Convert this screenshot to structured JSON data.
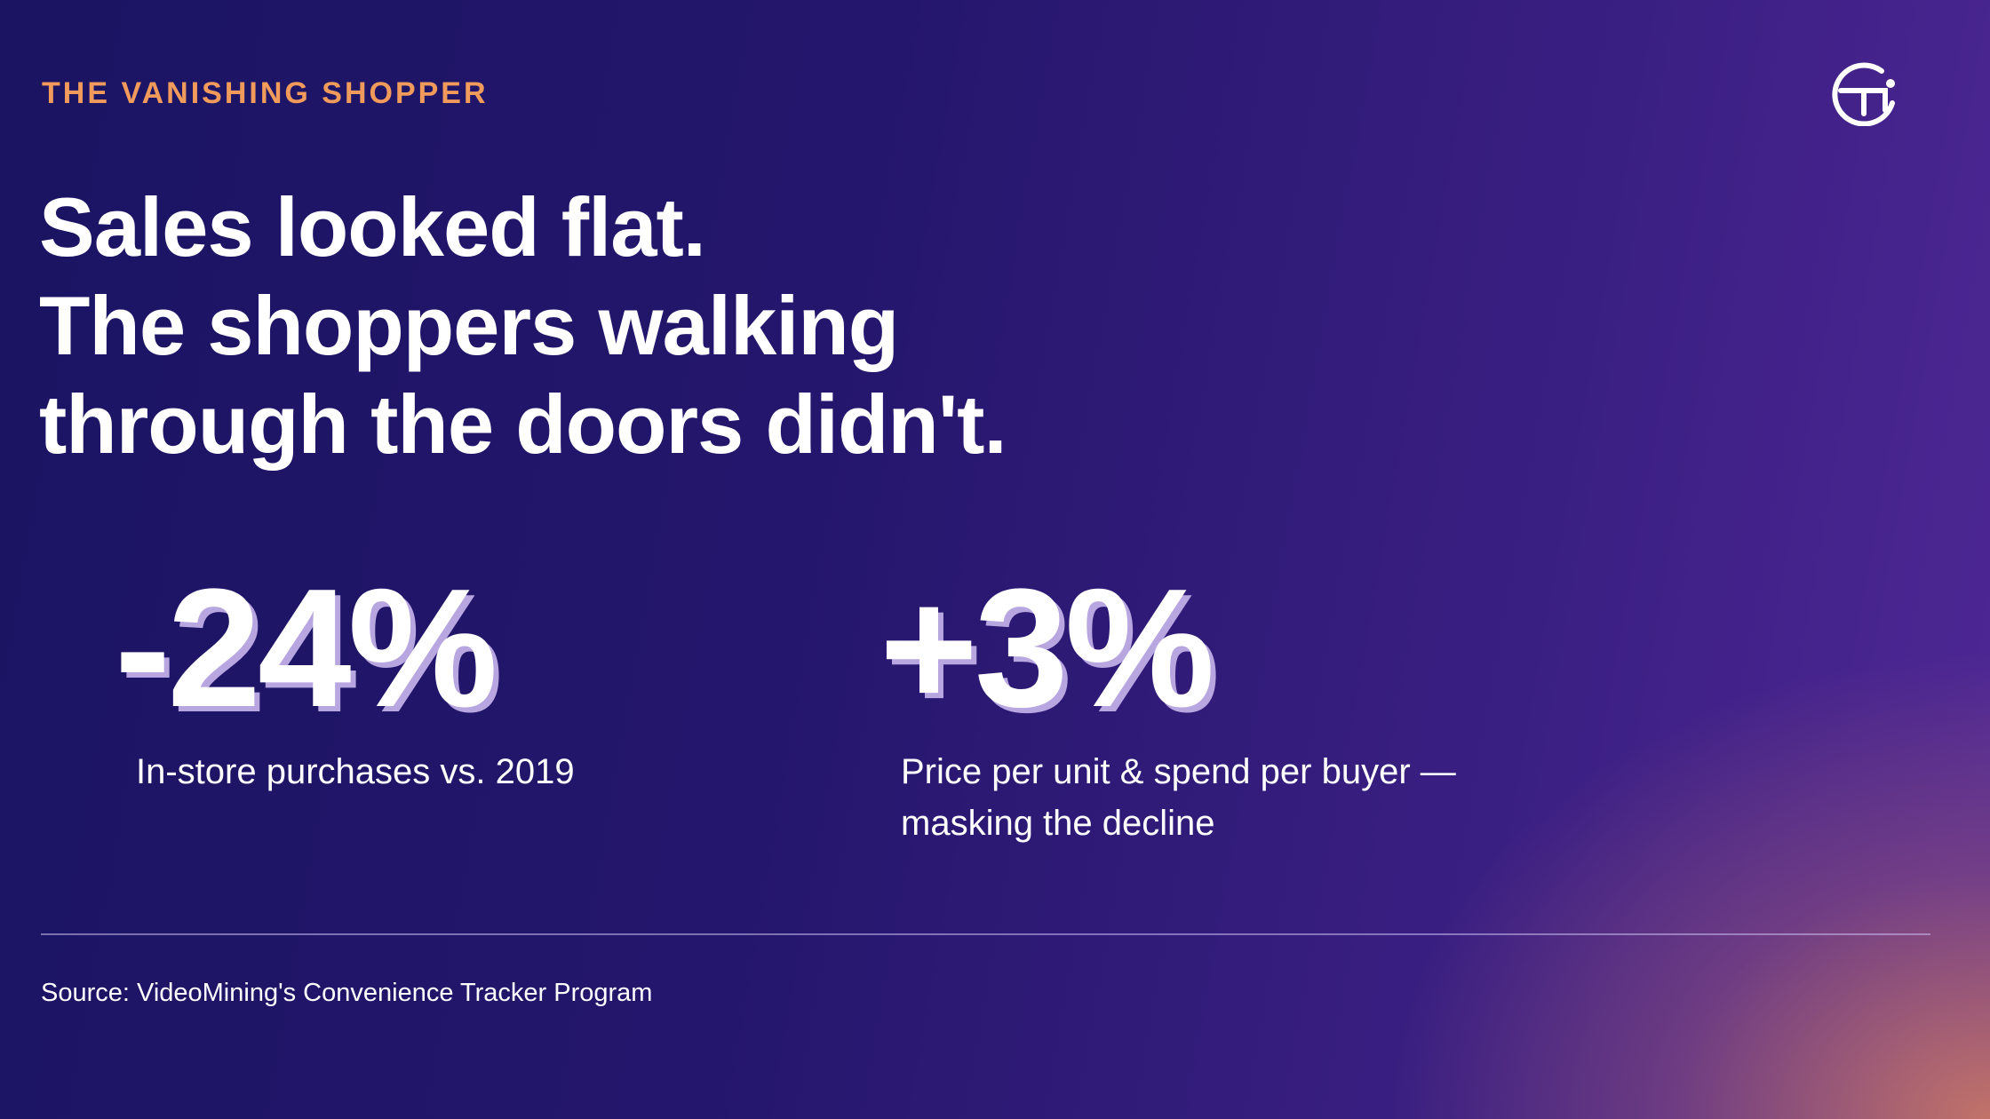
{
  "eyebrow": "THE VANISHING SHOPPER",
  "headline": [
    "Sales looked flat.",
    "The shoppers walking",
    "through the doors didn't."
  ],
  "stats": [
    {
      "value": "-24%",
      "label": "In-store purchases vs. 2019"
    },
    {
      "value": "+3%",
      "label": "Price per unit & spend per buyer — masking the decline"
    }
  ],
  "source": "Source: VideoMining's Convenience Tracker Program"
}
